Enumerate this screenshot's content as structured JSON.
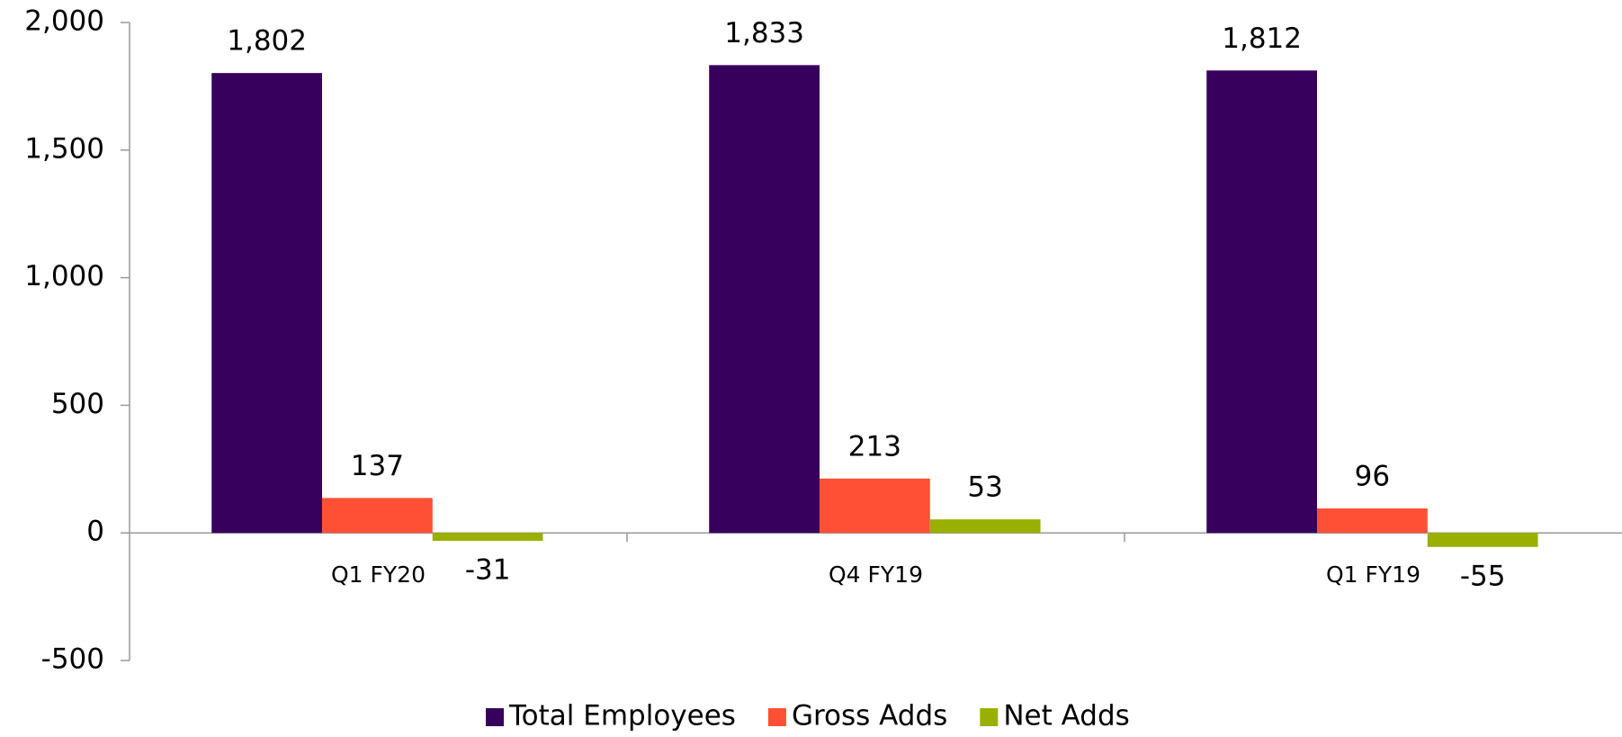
{
  "chart_data": {
    "type": "bar",
    "categories": [
      "Q1 FY20",
      "Q4 FY19",
      "Q1 FY19"
    ],
    "series": [
      {
        "name": "Total Employees",
        "color": "#36005c",
        "values": [
          1802,
          1833,
          1812
        ],
        "value_labels": [
          "1,802",
          "1,833",
          "1,812"
        ]
      },
      {
        "name": "Gross Adds",
        "color": "#ff5035",
        "values": [
          137,
          213,
          96
        ]
      },
      {
        "name": "Net Adds",
        "color": "#99b000",
        "values": [
          -31,
          53,
          -55
        ]
      }
    ],
    "ylim": [
      -500,
      2000
    ],
    "yticks": [
      -500,
      0,
      500,
      {
        "value": 1000,
        "label": "1,000"
      },
      {
        "value": 1500,
        "label": "1,500"
      },
      {
        "value": 2000,
        "label": "2,000"
      }
    ],
    "legend": "bottom"
  }
}
